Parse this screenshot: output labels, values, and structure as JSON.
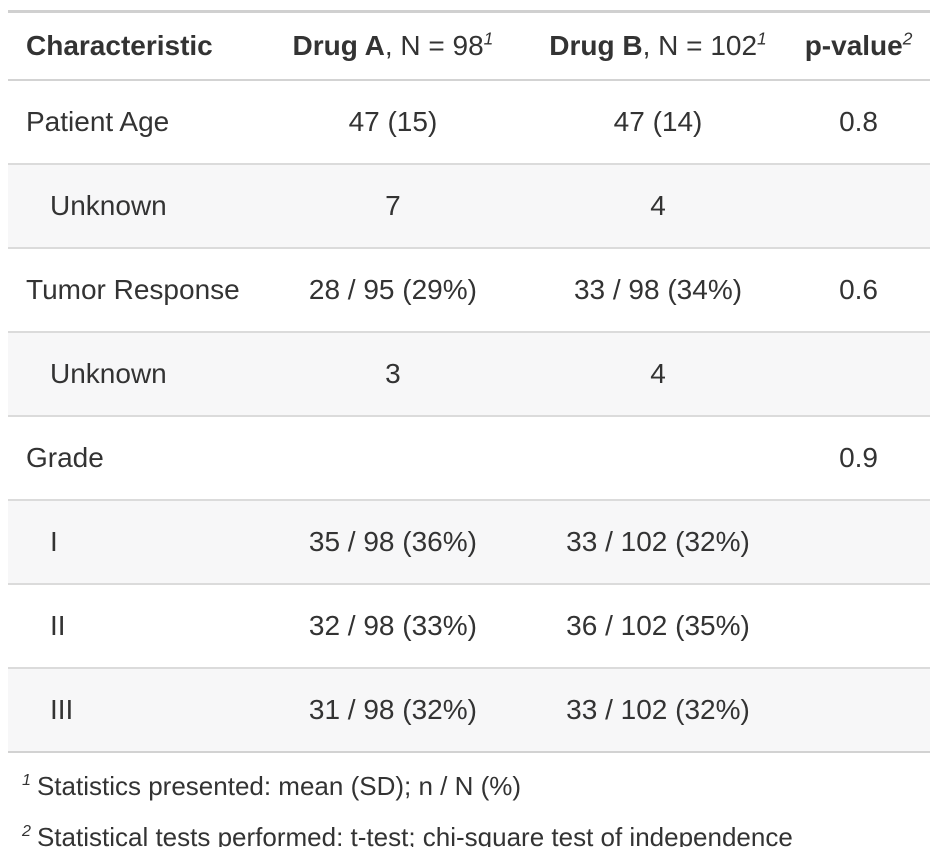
{
  "table": {
    "header": {
      "cols": [
        {
          "bold": "Characteristic",
          "rest": "",
          "sup": ""
        },
        {
          "bold": "Drug A",
          "rest": ", N = 98",
          "sup": "1"
        },
        {
          "bold": "Drug B",
          "rest": ", N = 102",
          "sup": "1"
        },
        {
          "bold": "p-value",
          "rest": "",
          "sup": "2"
        }
      ]
    },
    "rows": [
      {
        "label": "Patient Age",
        "drug_a": "47 (15)",
        "drug_b": "47 (14)",
        "p": "0.8"
      },
      {
        "label": "Unknown",
        "drug_a": "7",
        "drug_b": "4",
        "p": ""
      },
      {
        "label": "Tumor Response",
        "drug_a": "28 / 95 (29%)",
        "drug_b": "33 / 98 (34%)",
        "p": "0.6"
      },
      {
        "label": "Unknown",
        "drug_a": "3",
        "drug_b": "4",
        "p": ""
      },
      {
        "label": "Grade",
        "drug_a": "",
        "drug_b": "",
        "p": "0.9"
      },
      {
        "label": "I",
        "drug_a": "35 / 98 (36%)",
        "drug_b": "33 / 102 (32%)",
        "p": ""
      },
      {
        "label": "II",
        "drug_a": "32 / 98 (33%)",
        "drug_b": "36 / 102 (35%)",
        "p": ""
      },
      {
        "label": "III",
        "drug_a": "31 / 98 (32%)",
        "drug_b": "33 / 102 (32%)",
        "p": ""
      }
    ],
    "footnotes": [
      {
        "sup": "1",
        "text": "Statistics presented: mean (SD); n / N (%)"
      },
      {
        "sup": "2",
        "text": "Statistical tests performed: t-test; chi-square test of independence"
      }
    ],
    "colors": {
      "text": "#333333",
      "stripe_background": "#F7F7F8",
      "row_border": "#DBDBDB",
      "header_border": "#D3D3D3",
      "table_top_border": "#D0D0D0",
      "table_bottom_border": "#ABABAB"
    }
  }
}
